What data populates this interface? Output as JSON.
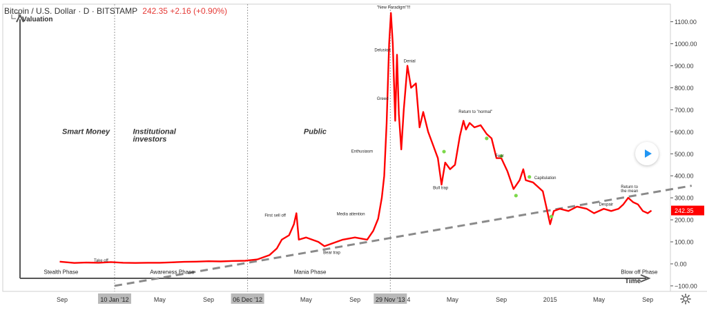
{
  "header": {
    "title": "Bitcoin / U.S. Dollar · D · BITSTAMP",
    "ohlc": "242.35 +2.16 (+0.90%)"
  },
  "colors": {
    "series": "#ff0000",
    "trend": "#8a8a8a",
    "text": "#333333",
    "axis": "#555555",
    "highlight": "#b9b9b9"
  },
  "icons": [
    "play-icon",
    "gear-icon",
    "expand-icon"
  ],
  "chart_data": {
    "type": "line",
    "ylabel": "Valuation",
    "xlabel": "Time",
    "ylim": [
      -100,
      1170
    ],
    "grid": false,
    "y_ticks": [
      1100,
      1000,
      900,
      800,
      700,
      600,
      500,
      400,
      300,
      200,
      100,
      0,
      -100
    ],
    "y_tick_labels": [
      "1100.00",
      "1000.00",
      "900.00",
      "800.00",
      "700.00",
      "600.00",
      "500.00",
      "400.00",
      "300.00",
      "200.00",
      "100.00",
      "0.00",
      "−100.00"
    ],
    "x_ticks": [
      {
        "label": "Sep",
        "t": 0
      },
      {
        "label": "May",
        "t": 8
      },
      {
        "label": "Sep",
        "t": 12
      },
      {
        "label": "May",
        "t": 20
      },
      {
        "label": "Sep",
        "t": 24
      },
      {
        "label": "4",
        "t": 28.4
      },
      {
        "label": "May",
        "t": 32
      },
      {
        "label": "Sep",
        "t": 36
      },
      {
        "label": "2015",
        "t": 40
      },
      {
        "label": "May",
        "t": 44
      },
      {
        "label": "Sep",
        "t": 48
      }
    ],
    "highlighted_dates": [
      {
        "label": "10 Jan '12",
        "t": 4.3
      },
      {
        "label": "06 Dec '12",
        "t": 15.2
      },
      {
        "label": "29 Nov '13",
        "t": 26.9
      }
    ],
    "series": [
      {
        "points": [
          [
            -0.2,
            10
          ],
          [
            1,
            4
          ],
          [
            2,
            6
          ],
          [
            3,
            5
          ],
          [
            4,
            8
          ],
          [
            5,
            5
          ],
          [
            6,
            4
          ],
          [
            7,
            5
          ],
          [
            8,
            5
          ],
          [
            9,
            7
          ],
          [
            10,
            9
          ],
          [
            11,
            10
          ],
          [
            12,
            12
          ],
          [
            13,
            11
          ],
          [
            14,
            13
          ],
          [
            15,
            14
          ],
          [
            16,
            20
          ],
          [
            17,
            40
          ],
          [
            17.6,
            70
          ],
          [
            18,
            110
          ],
          [
            18.6,
            130
          ],
          [
            19,
            180
          ],
          [
            19.2,
            230
          ],
          [
            19.4,
            110
          ],
          [
            20,
            120
          ],
          [
            21,
            100
          ],
          [
            21.5,
            80
          ],
          [
            22,
            90
          ],
          [
            23,
            110
          ],
          [
            24,
            120
          ],
          [
            25,
            110
          ],
          [
            25.5,
            150
          ],
          [
            25.9,
            205
          ],
          [
            26.2,
            300
          ],
          [
            26.4,
            400
          ],
          [
            26.6,
            640
          ],
          [
            26.8,
            1000
          ],
          [
            26.95,
            1140
          ],
          [
            27.1,
            1000
          ],
          [
            27.3,
            650
          ],
          [
            27.45,
            950
          ],
          [
            27.6,
            680
          ],
          [
            27.8,
            520
          ],
          [
            28,
            700
          ],
          [
            28.3,
            900
          ],
          [
            28.6,
            800
          ],
          [
            29,
            820
          ],
          [
            29.3,
            620
          ],
          [
            29.6,
            690
          ],
          [
            30,
            600
          ],
          [
            30.4,
            540
          ],
          [
            30.8,
            480
          ],
          [
            31.1,
            360
          ],
          [
            31.4,
            460
          ],
          [
            31.8,
            430
          ],
          [
            32.2,
            450
          ],
          [
            32.6,
            580
          ],
          [
            32.9,
            650
          ],
          [
            33.1,
            610
          ],
          [
            33.4,
            640
          ],
          [
            33.8,
            620
          ],
          [
            34.3,
            630
          ],
          [
            34.8,
            590
          ],
          [
            35.2,
            570
          ],
          [
            35.6,
            480
          ],
          [
            36,
            480
          ],
          [
            36.5,
            420
          ],
          [
            37,
            340
          ],
          [
            37.5,
            380
          ],
          [
            37.8,
            430
          ],
          [
            38,
            380
          ],
          [
            38.6,
            370
          ],
          [
            39.4,
            330
          ],
          [
            39.8,
            230
          ],
          [
            40,
            180
          ],
          [
            40.3,
            240
          ],
          [
            40.8,
            250
          ],
          [
            41.5,
            240
          ],
          [
            42.2,
            260
          ],
          [
            43,
            250
          ],
          [
            43.6,
            230
          ],
          [
            44.4,
            250
          ],
          [
            45,
            240
          ],
          [
            45.6,
            250
          ],
          [
            46,
            270
          ],
          [
            46.4,
            300
          ],
          [
            46.8,
            280
          ],
          [
            47.2,
            270
          ],
          [
            47.6,
            240
          ],
          [
            48,
            230
          ],
          [
            48.3,
            242
          ]
        ]
      }
    ],
    "trend_line": {
      "from": [
        4.3,
        -100
      ],
      "to": [
        51.6,
        355
      ]
    },
    "markers": [
      {
        "t": 31.3,
        "y": 510
      },
      {
        "t": 34.8,
        "y": 570
      },
      {
        "t": 36.0,
        "y": 490
      },
      {
        "t": 37.2,
        "y": 310
      },
      {
        "t": 38.3,
        "y": 395
      },
      {
        "t": 40.1,
        "y": 215
      }
    ],
    "annotations": [
      {
        "text": "Smart Money",
        "t": 0.0,
        "y": 590,
        "style": "phase"
      },
      {
        "text": "Institutional",
        "t": 5.8,
        "y": 590,
        "style": "phase"
      },
      {
        "text": "investors",
        "t": 5.8,
        "y": 555,
        "style": "phase"
      },
      {
        "text": "Public",
        "t": 19.8,
        "y": 590,
        "style": "phase"
      },
      {
        "text": "\"New Paradigm\"!!!",
        "t": 25.8,
        "y": 1160,
        "style": "small"
      },
      {
        "text": "Delusion",
        "t": 25.6,
        "y": 965,
        "style": "small"
      },
      {
        "text": "Denial",
        "t": 28.0,
        "y": 915,
        "style": "small"
      },
      {
        "text": "Greed",
        "t": 25.8,
        "y": 745,
        "style": "small"
      },
      {
        "text": "Return to \"normal\"",
        "t": 32.5,
        "y": 685,
        "style": "small"
      },
      {
        "text": "Enthusiasm",
        "t": 23.7,
        "y": 505,
        "style": "small"
      },
      {
        "text": "Fear",
        "t": 35.5,
        "y": 485,
        "style": "small"
      },
      {
        "text": "Capitulation",
        "t": 38.7,
        "y": 385,
        "style": "small"
      },
      {
        "text": "Bull trap",
        "t": 30.4,
        "y": 340,
        "style": "small"
      },
      {
        "text": "Return to",
        "t": 45.8,
        "y": 345,
        "style": "small"
      },
      {
        "text": "the mean",
        "t": 45.8,
        "y": 325,
        "style": "small"
      },
      {
        "text": "Despair",
        "t": 44.0,
        "y": 265,
        "style": "small"
      },
      {
        "text": "First sell off",
        "t": 16.6,
        "y": 215,
        "style": "small"
      },
      {
        "text": "Media attention",
        "t": 22.5,
        "y": 220,
        "style": "small"
      },
      {
        "text": "Bear trap",
        "t": 21.4,
        "y": 45,
        "style": "small"
      },
      {
        "text": "Take off",
        "t": 2.6,
        "y": 10,
        "style": "small"
      },
      {
        "text": "Stealth Phase",
        "t": -1.5,
        "y": -45,
        "style": "phase-label"
      },
      {
        "text": "Awareness Phase",
        "t": 7.2,
        "y": -45,
        "style": "phase-label"
      },
      {
        "text": "Mania Phase",
        "t": 19.0,
        "y": -45,
        "style": "phase-label"
      },
      {
        "text": "Blow off Phase",
        "t": 45.8,
        "y": -45,
        "style": "phase-label"
      }
    ],
    "last_value": "242.35"
  }
}
